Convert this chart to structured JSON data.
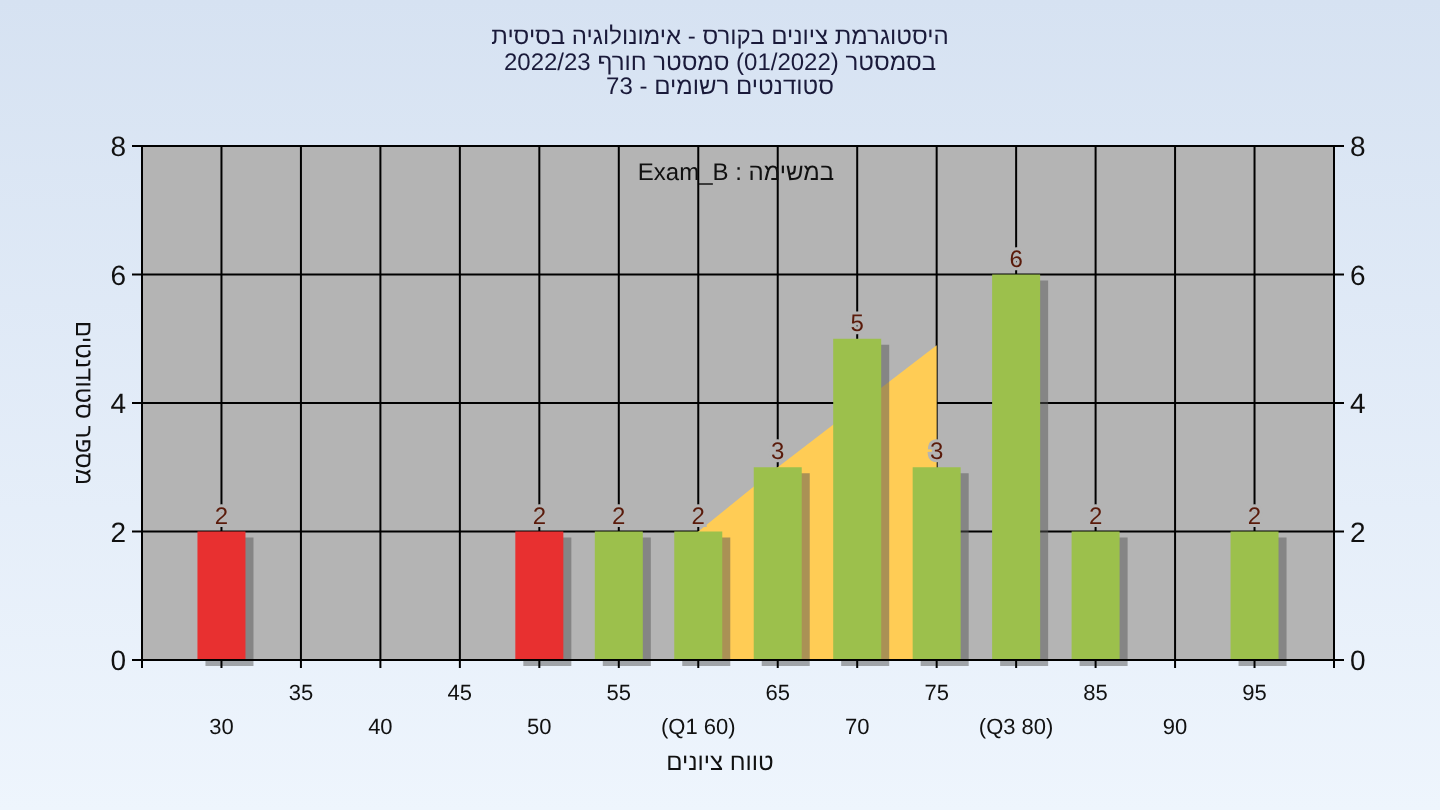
{
  "chart_data": {
    "type": "bar",
    "title": "היסטוגרמת ציונים בקורס - אימונולוגיה בסיסית",
    "subtitle": [
      "בסמסטר  (01/2022)  סמסטר חורף 2022/23",
      "סטודנטים רשומים - 73"
    ],
    "xlabel": "טווח ציונים",
    "ylabel": "מספר סטודנטים",
    "annotations": [
      "במשימה : Exam_B"
    ],
    "categories": [
      "30",
      "35",
      "40",
      "45",
      "50",
      "55",
      "(Q1 60)",
      "65",
      "70",
      "75",
      "(Q3 80)",
      "85",
      "90",
      "95"
    ],
    "series": [
      {
        "type": "area",
        "color": "#ffcc55",
        "values": [
          null,
          null,
          null,
          null,
          null,
          null,
          2,
          3,
          null,
          4.9,
          null,
          null,
          null,
          null
        ]
      },
      {
        "colors": [
          "#e83030",
          "#e83030",
          "#e83030",
          "#e83030",
          "#e83030",
          "#9cc04c",
          "#9cc04c",
          "#9cc04c",
          "#9cc04c",
          "#9cc04c",
          "#9cc04c",
          "#9cc04c",
          "#9cc04c",
          "#9cc04c"
        ],
        "values": [
          2,
          0,
          0,
          0,
          2,
          2,
          2,
          3,
          5,
          3,
          6,
          2,
          0,
          2
        ],
        "value_labels": [
          "2",
          null,
          null,
          null,
          "2",
          "2",
          "2",
          "3",
          "5",
          "3",
          "6",
          "2",
          null,
          "2"
        ]
      }
    ],
    "ylim": [
      0,
      8
    ],
    "yticks": [
      0,
      2,
      4,
      6,
      8
    ],
    "y2lim": [
      0,
      8
    ],
    "y2ticks": [
      0,
      2,
      4,
      6,
      8
    ],
    "grid": true
  }
}
